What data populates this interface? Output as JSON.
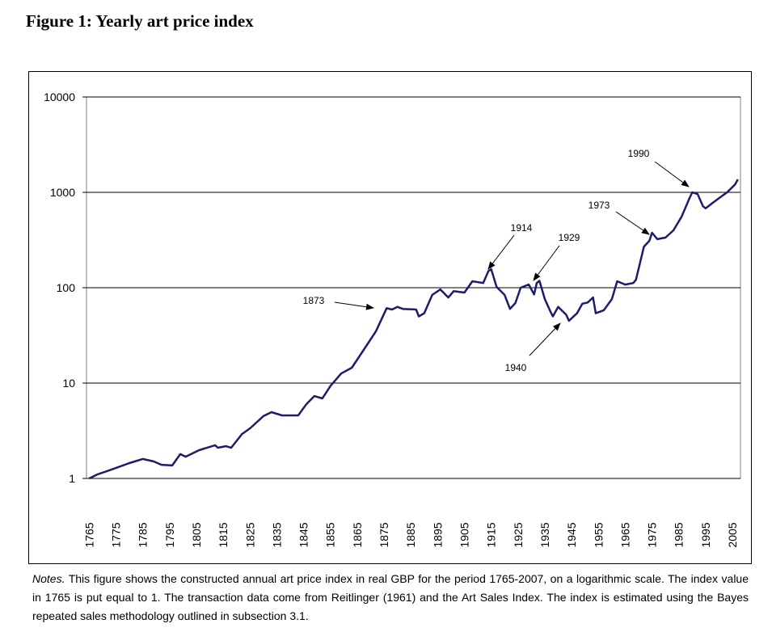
{
  "chart_data": {
    "type": "line",
    "title": "Figure 1: Yearly art price index",
    "x": [
      1765,
      1768,
      1774,
      1780,
      1785,
      1789,
      1792,
      1796,
      1799,
      1801,
      1806,
      1812,
      1813,
      1816,
      1818,
      1822,
      1825,
      1830,
      1833,
      1837,
      1840,
      1843,
      1846,
      1849,
      1852,
      1855,
      1859,
      1863,
      1866,
      1869,
      1872,
      1876,
      1878,
      1880,
      1882,
      1887,
      1888,
      1890,
      1893,
      1896,
      1899,
      1901,
      1905,
      1908,
      1912,
      1914,
      1915,
      1917,
      1920,
      1922,
      1924,
      1926,
      1929,
      1931,
      1932,
      1933,
      1935,
      1937,
      1938,
      1940,
      1943,
      1944,
      1947,
      1949,
      1951,
      1953,
      1954,
      1957,
      1960,
      1962,
      1965,
      1968,
      1969,
      1972,
      1974,
      1975,
      1977,
      1980,
      1983,
      1986,
      1989,
      1990,
      1992,
      1994,
      1995,
      1998,
      2003,
      2006,
      2007
    ],
    "values": [
      1,
      1.1,
      1.26,
      1.45,
      1.6,
      1.51,
      1.39,
      1.37,
      1.8,
      1.69,
      1.98,
      2.23,
      2.1,
      2.18,
      2.1,
      2.92,
      3.35,
      4.5,
      4.95,
      4.58,
      4.58,
      4.58,
      6,
      7.3,
      6.9,
      9.3,
      12.6,
      14.5,
      19.4,
      26,
      35,
      61,
      59,
      63,
      60,
      59,
      50,
      54,
      84,
      96,
      79,
      92,
      89,
      117,
      112,
      150,
      156,
      102,
      84,
      60,
      69,
      100,
      108,
      85,
      112,
      118,
      76,
      57,
      50,
      63,
      52,
      45,
      54,
      68,
      70,
      79,
      54,
      58,
      76,
      117,
      108,
      112,
      121,
      270,
      310,
      377,
      323,
      335,
      400,
      555,
      870,
      1000,
      960,
      715,
      680,
      790,
      1000,
      1210,
      1370
    ],
    "color": "#1c1c6b",
    "log_y": true,
    "xlim": [
      1764,
      2008
    ],
    "ylim": [
      1,
      10000
    ],
    "yticks": [
      1,
      10,
      100,
      1000,
      10000
    ],
    "xticks": [
      1765,
      1775,
      1785,
      1795,
      1805,
      1815,
      1825,
      1835,
      1845,
      1855,
      1865,
      1875,
      1885,
      1895,
      1905,
      1915,
      1925,
      1935,
      1945,
      1955,
      1965,
      1975,
      1985,
      1995,
      2005
    ],
    "grid": true,
    "annotations": [
      "1873",
      "1914",
      "1929",
      "1940",
      "1973",
      "1990"
    ],
    "notes_label": "Notes.",
    "notes": "This figure shows the constructed annual art price index in real GBP for the period 1765-2007, on a logarithmic scale. The index value in 1765 is put equal to 1. The transaction data come from Reitlinger (1961) and the Art Sales Index. The index is estimated using the Bayes repeated sales methodology outlined in subsection 3.1."
  }
}
